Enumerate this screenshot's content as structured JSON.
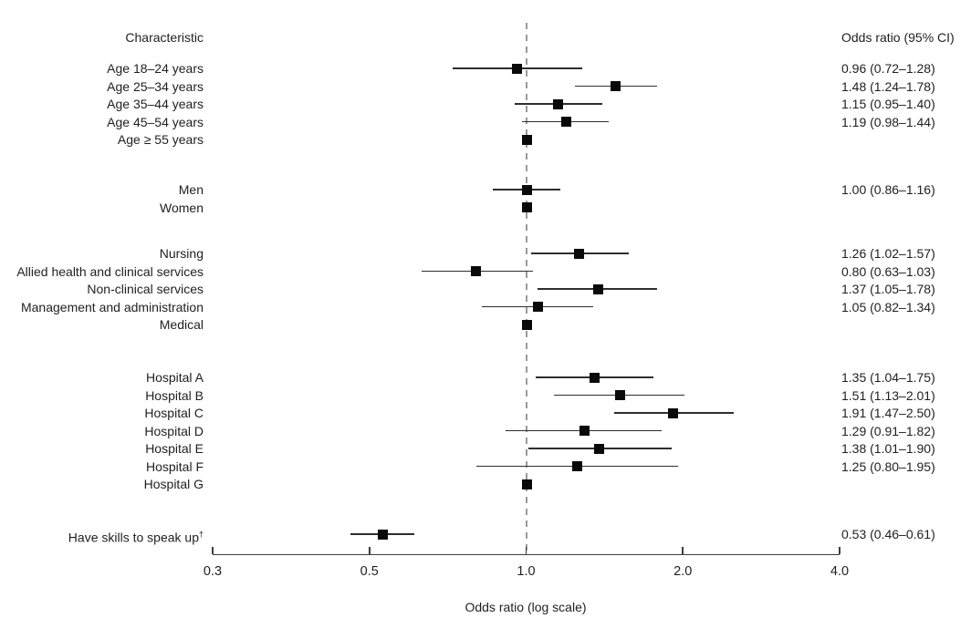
{
  "chart_data": {
    "type": "forest",
    "columns": {
      "left_header": "Characteristic",
      "right_header": "Odds ratio (95% CI)"
    },
    "x_axis": {
      "label": "Odds ratio (log scale)",
      "scale": "log",
      "ticks": [
        "0.3",
        "0.5",
        "1.0",
        "2.0",
        "4.0"
      ],
      "tick_values": [
        0.3,
        0.5,
        1.0,
        2.0,
        4.0
      ],
      "range": [
        0.3,
        4.0
      ],
      "reference_line": 1.0
    },
    "colors": {
      "marker": "#0a0a0a",
      "ci_line": "#2e2e2e",
      "reference_dash": "#9a9a9a",
      "text": "#1f1f1f"
    },
    "groups": [
      {
        "name": "age",
        "rows": [
          {
            "label": "Age 18–24 years",
            "or": 0.96,
            "low": 0.72,
            "high": 1.28,
            "text": "0.96 (0.72–1.28)"
          },
          {
            "label": "Age 25–34 years",
            "or": 1.48,
            "low": 1.24,
            "high": 1.78,
            "text": "1.48 (1.24–1.78)"
          },
          {
            "label": "Age 35–44 years",
            "or": 1.15,
            "low": 0.95,
            "high": 1.4,
            "text": "1.15 (0.95–1.40)"
          },
          {
            "label": "Age 45–54 years",
            "or": 1.19,
            "low": 0.98,
            "high": 1.44,
            "text": "1.19 (0.98–1.44)"
          },
          {
            "label": "Age ≥ 55 years",
            "or": 1.0,
            "reference": true,
            "text": ""
          }
        ]
      },
      {
        "name": "sex",
        "rows": [
          {
            "label": "Men",
            "or": 1.0,
            "low": 0.86,
            "high": 1.16,
            "text": "1.00 (0.86–1.16)"
          },
          {
            "label": "Women",
            "or": 1.0,
            "reference": true,
            "text": ""
          }
        ]
      },
      {
        "name": "occupation",
        "rows": [
          {
            "label": "Nursing",
            "or": 1.26,
            "low": 1.02,
            "high": 1.57,
            "text": "1.26 (1.02–1.57)"
          },
          {
            "label": "Allied health and clinical services",
            "or": 0.8,
            "low": 0.63,
            "high": 1.03,
            "text": "0.80 (0.63–1.03)"
          },
          {
            "label": "Non-clinical services",
            "or": 1.37,
            "low": 1.05,
            "high": 1.78,
            "text": "1.37 (1.05–1.78)"
          },
          {
            "label": "Management and administration",
            "or": 1.05,
            "low": 0.82,
            "high": 1.34,
            "text": "1.05 (0.82–1.34)"
          },
          {
            "label": "Medical",
            "or": 1.0,
            "reference": true,
            "text": ""
          }
        ]
      },
      {
        "name": "hospital",
        "rows": [
          {
            "label": "Hospital A",
            "or": 1.35,
            "low": 1.04,
            "high": 1.75,
            "text": "1.35 (1.04–1.75)"
          },
          {
            "label": "Hospital B",
            "or": 1.51,
            "low": 1.13,
            "high": 2.01,
            "text": "1.51 (1.13–2.01)"
          },
          {
            "label": "Hospital C",
            "or": 1.91,
            "low": 1.47,
            "high": 2.5,
            "text": "1.91 (1.47–2.50)"
          },
          {
            "label": "Hospital D",
            "or": 1.29,
            "low": 0.91,
            "high": 1.82,
            "text": "1.29 (0.91–1.82)"
          },
          {
            "label": "Hospital E",
            "or": 1.38,
            "low": 1.01,
            "high": 1.9,
            "text": "1.38 (1.01–1.90)"
          },
          {
            "label": "Hospital F",
            "or": 1.25,
            "low": 0.8,
            "high": 1.95,
            "text": "1.25 (0.80–1.95)"
          },
          {
            "label": "Hospital G",
            "or": 1.0,
            "reference": true,
            "text": ""
          }
        ]
      },
      {
        "name": "skills",
        "rows": [
          {
            "label": "Have skills to speak up",
            "sup": "†",
            "or": 0.53,
            "low": 0.46,
            "high": 0.61,
            "text": "0.53 (0.46–0.61)"
          }
        ]
      }
    ]
  }
}
